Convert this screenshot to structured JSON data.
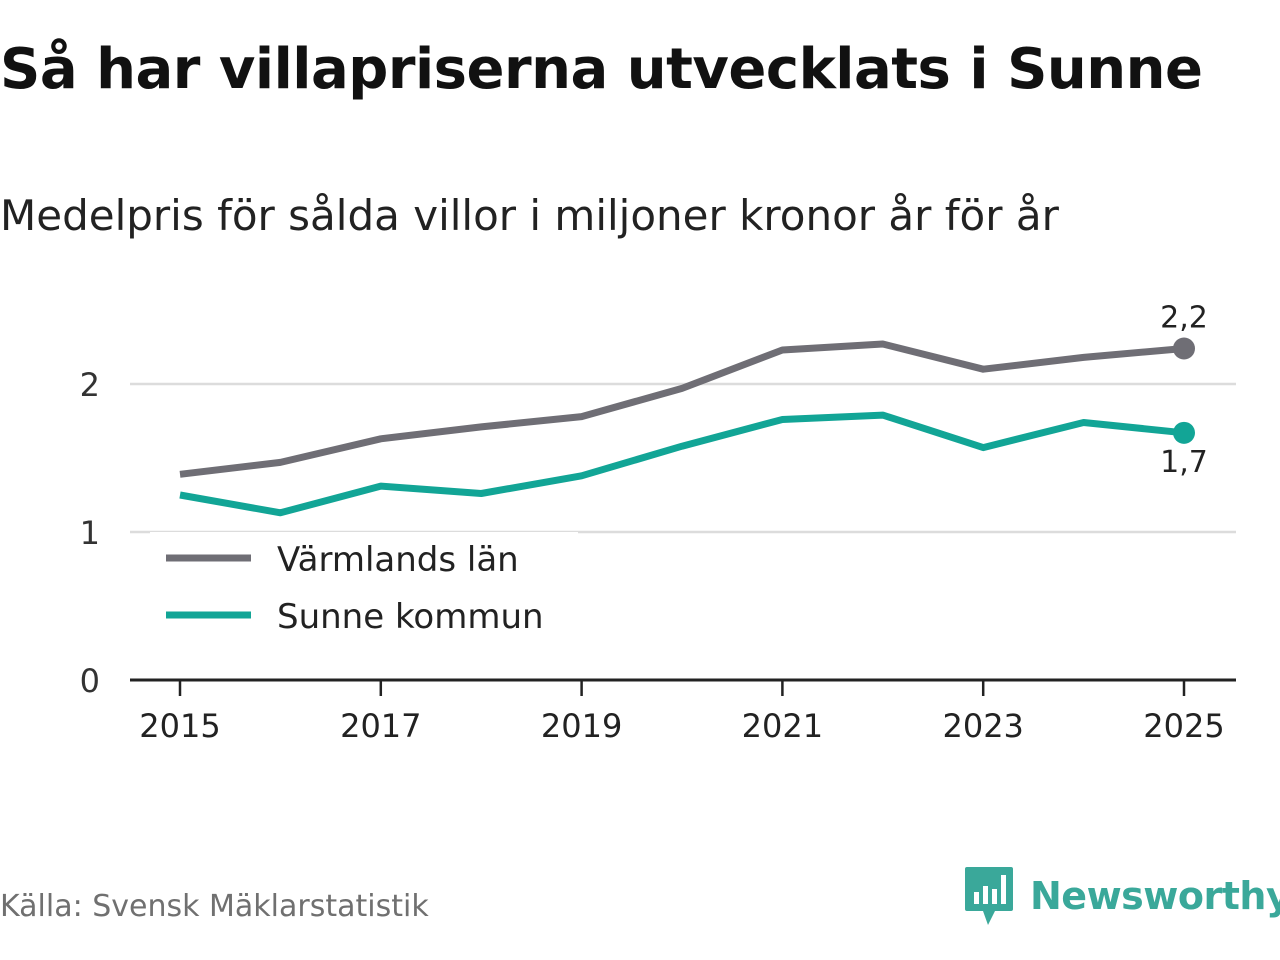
{
  "title": "Så har villapriserna utvecklats i Sunne",
  "subtitle": "Medelpris för sålda villor i miljoner kronor år för år",
  "source": "Källa: Svensk Mäklarstatistik",
  "brand": "Newsworthy",
  "colors": {
    "varmland": "#6f6e75",
    "sunne": "#12a596",
    "grid": "#dcdcdc",
    "axis": "#222222",
    "brand": "#3aa89a"
  },
  "chart_data": {
    "type": "line",
    "title": "Så har villapriserna utvecklats i Sunne",
    "subtitle": "Medelpris för sålda villor i miljoner kronor år för år",
    "x": [
      2015,
      2016,
      2017,
      2018,
      2019,
      2020,
      2021,
      2022,
      2023,
      2024,
      2025
    ],
    "xticks": [
      "2015",
      "2017",
      "2019",
      "2021",
      "2023",
      "2025"
    ],
    "yticks": [
      "0",
      "1",
      "2"
    ],
    "ylim": [
      0,
      2.5
    ],
    "xlabel": "",
    "ylabel": "",
    "grid": true,
    "legend_position": "bottom-left",
    "series": [
      {
        "name": "Värmlands län",
        "color": "#6f6e75",
        "values": [
          1.39,
          1.47,
          1.63,
          1.71,
          1.78,
          1.97,
          2.23,
          2.27,
          2.1,
          2.18,
          2.24
        ],
        "end_label": "2,2",
        "end_label_position": "above"
      },
      {
        "name": "Sunne kommun",
        "color": "#12a596",
        "values": [
          1.25,
          1.13,
          1.31,
          1.26,
          1.38,
          1.58,
          1.76,
          1.79,
          1.57,
          1.74,
          1.67
        ],
        "end_label": "1,7",
        "end_label_position": "below"
      }
    ]
  }
}
